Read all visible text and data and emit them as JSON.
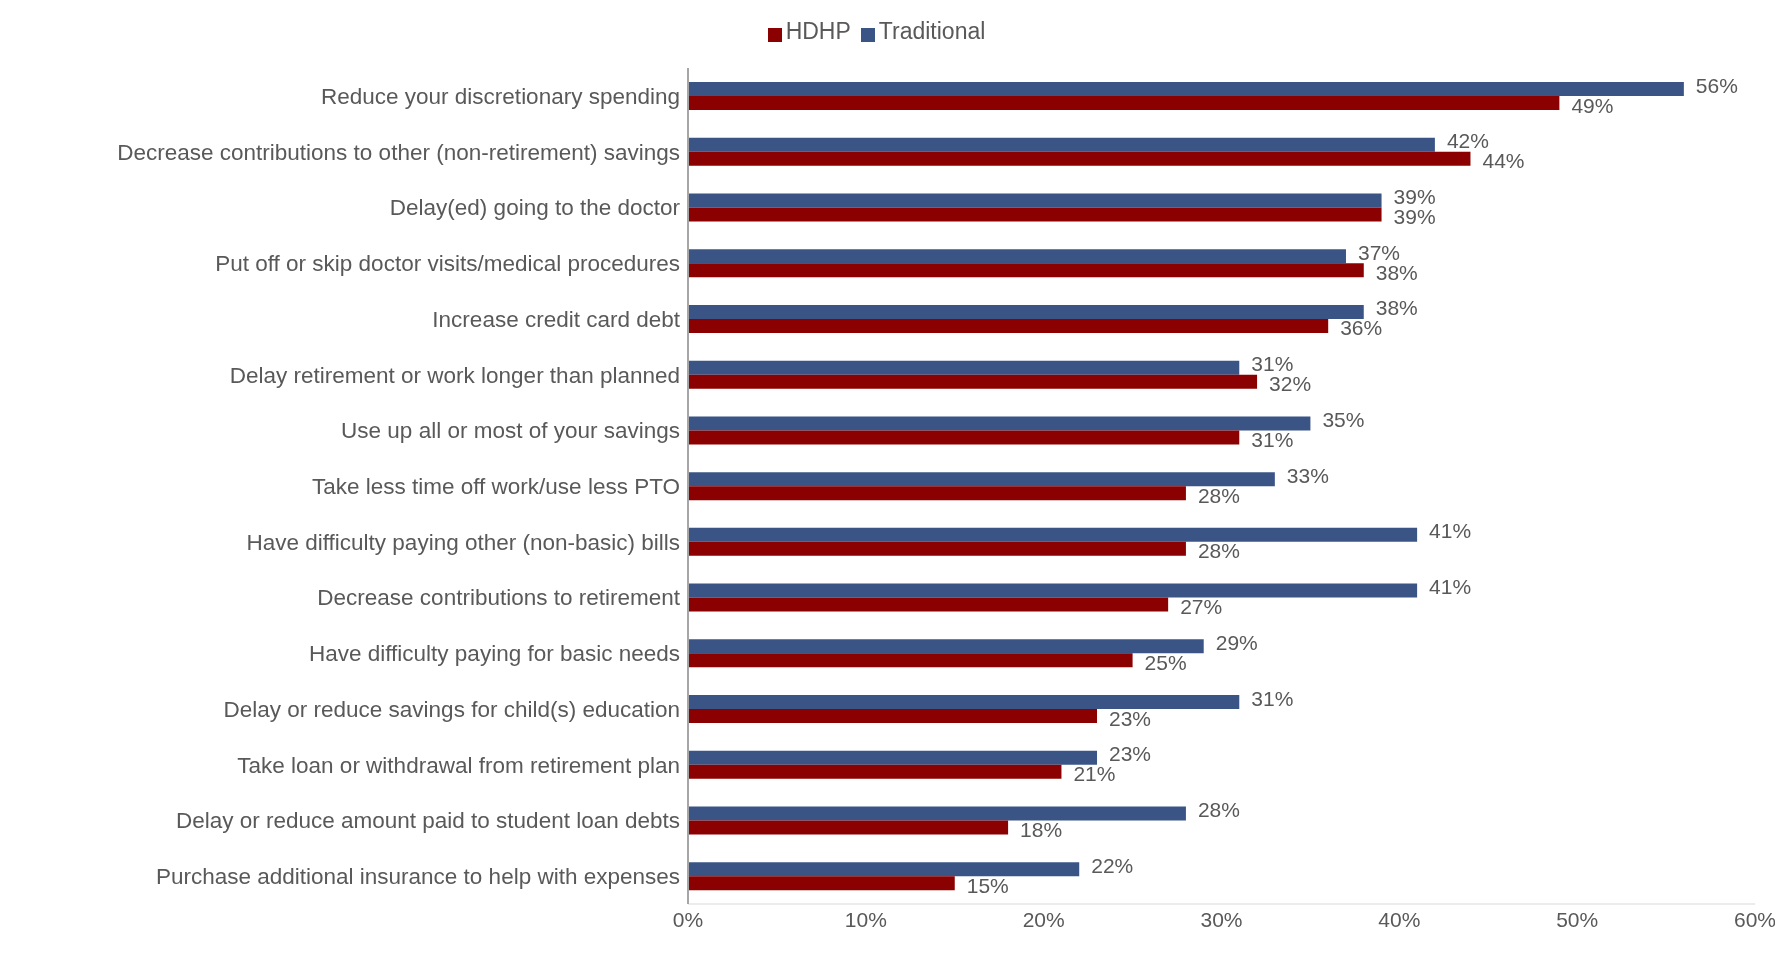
{
  "chart_data": {
    "type": "bar",
    "orientation": "horizontal",
    "legend": "top",
    "grid": false,
    "categories": [
      "Reduce your discretionary spending",
      "Decrease contributions to other (non-retirement) savings",
      "Delay(ed) going to the doctor",
      "Put off or skip doctor visits/medical procedures",
      "Increase credit card debt",
      "Delay retirement or work longer than planned",
      "Use up all or most of your savings",
      "Take less time off work/use less PTO",
      "Have difficulty paying other (non-basic) bills",
      "Decrease contributions to retirement",
      "Have difficulty paying for basic needs",
      "Delay or reduce savings for child(s) education",
      "Take loan or withdrawal from retirement plan",
      "Delay or reduce amount paid to student loan debts",
      "Purchase additional insurance to help with expenses"
    ],
    "series": [
      {
        "name": "Traditional",
        "color": "#3b5486",
        "values": [
          56,
          42,
          39,
          37,
          38,
          31,
          35,
          33,
          41,
          41,
          29,
          31,
          23,
          28,
          22
        ],
        "value_labels": [
          "56%",
          "42%",
          "39%",
          "37%",
          "38%",
          "31%",
          "35%",
          "33%",
          "41%",
          "41%",
          "29%",
          "31%",
          "23%",
          "28%",
          "22%"
        ]
      },
      {
        "name": "HDHP",
        "color": "#8b0000",
        "values": [
          49,
          44,
          39,
          38,
          36,
          32,
          31,
          28,
          28,
          27,
          25,
          23,
          21,
          18,
          15
        ],
        "value_labels": [
          "49%",
          "44%",
          "39%",
          "38%",
          "36%",
          "32%",
          "31%",
          "28%",
          "28%",
          "27%",
          "25%",
          "23%",
          "21%",
          "18%",
          "15%"
        ]
      }
    ],
    "xlim": [
      0,
      60
    ],
    "xticks": [
      {
        "value": 0,
        "label": "0%"
      },
      {
        "value": 10,
        "label": "10%"
      },
      {
        "value": 20,
        "label": "20%"
      },
      {
        "value": 30,
        "label": "30%"
      },
      {
        "value": 40,
        "label": "40%"
      },
      {
        "value": 50,
        "label": "50%"
      },
      {
        "value": 60,
        "label": "60%"
      }
    ]
  }
}
